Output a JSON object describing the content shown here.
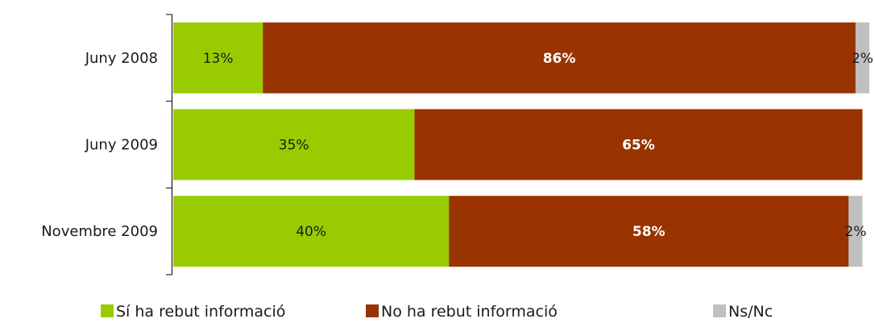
{
  "chart_data": {
    "type": "bar",
    "orientation": "horizontal",
    "stacked": true,
    "categories": [
      "Juny 2008",
      "Juny 2009",
      "Novembre 2009"
    ],
    "series": [
      {
        "name": "Sí ha rebut informació",
        "values": [
          13,
          35,
          40
        ],
        "labels": [
          "13%",
          "35%",
          "40%"
        ],
        "color": "#99cc00",
        "label_color": "#1a1a1a",
        "label_bold": false
      },
      {
        "name": "No ha rebut informació",
        "values": [
          86,
          65,
          58
        ],
        "labels": [
          "86%",
          "65%",
          "58%"
        ],
        "color": "#993300",
        "label_color": "#ffffff",
        "label_bold": true
      },
      {
        "name": "Ns/Nc",
        "values": [
          2,
          0,
          2
        ],
        "labels": [
          "2%",
          "",
          "2%"
        ],
        "color": "#c0c0c0",
        "label_color": "#1a1a1a",
        "label_bold": false
      }
    ],
    "xlim": [
      0,
      101
    ],
    "grid": false,
    "legend": "bottom"
  }
}
